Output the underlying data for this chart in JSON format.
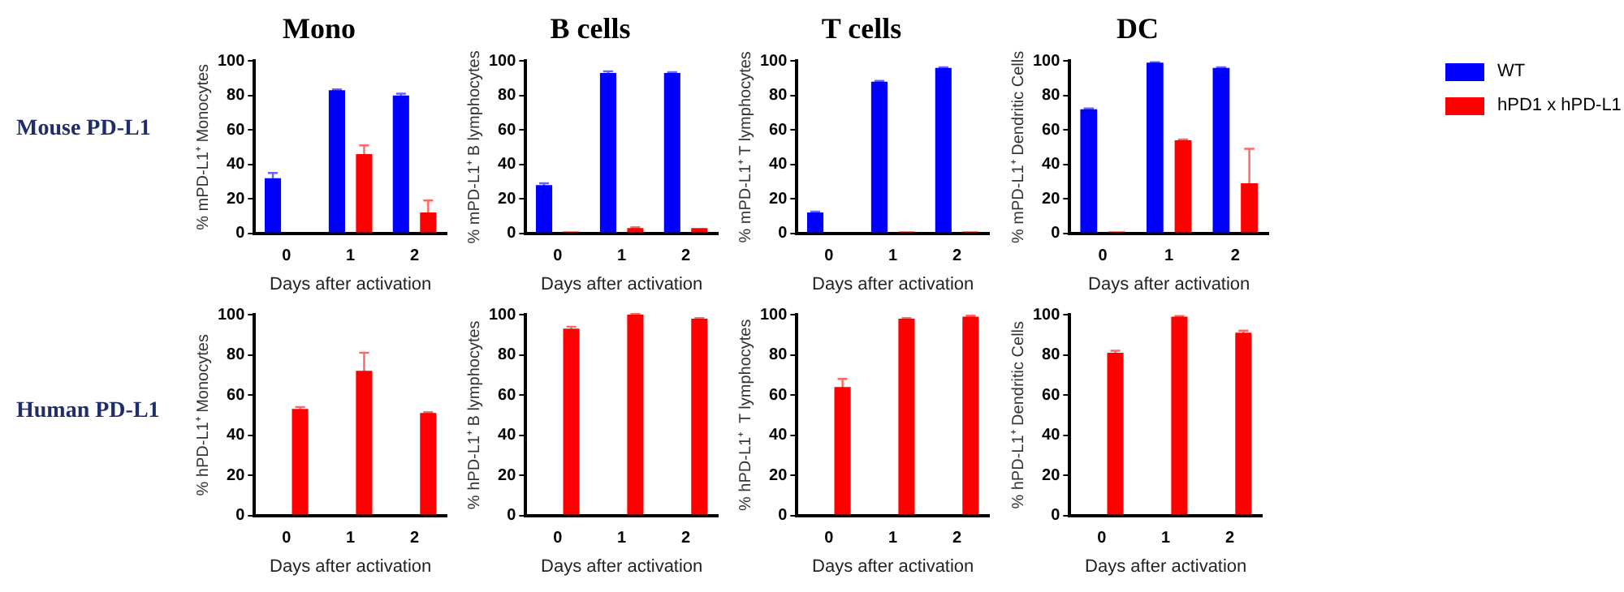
{
  "chart_data": [
    {
      "type": "bar",
      "title": "Mono",
      "xlabel": "Days after activation",
      "ylabel": "% mPD-L1⁺ Monocytes",
      "categories": [
        "0",
        "1",
        "2"
      ],
      "ylim": [
        0,
        100
      ],
      "yticks": [
        0,
        20,
        40,
        60,
        80,
        100
      ],
      "grid": false,
      "legend": false,
      "annotations": [
        "Mouse PD-L1"
      ],
      "series": [
        {
          "color": "#0000ff",
          "values": [
            32,
            83,
            80
          ],
          "errors": [
            3,
            0.5,
            1
          ]
        },
        {
          "color": "#ff0000",
          "values": [
            0,
            46,
            12
          ],
          "errors": [
            null,
            5,
            7
          ]
        }
      ]
    },
    {
      "type": "bar",
      "title": "B cells",
      "xlabel": "Days after activation",
      "ylabel": "% mPD-L1⁺ B lymphocytes",
      "categories": [
        "0",
        "1",
        "2"
      ],
      "ylim": [
        0,
        100
      ],
      "yticks": [
        0,
        20,
        40,
        60,
        80,
        100
      ],
      "grid": false,
      "legend": false,
      "series": [
        {
          "color": "#0000ff",
          "values": [
            28,
            93,
            93
          ],
          "errors": [
            1,
            1,
            0.5
          ]
        },
        {
          "color": "#ff0000",
          "values": [
            1,
            3,
            3
          ],
          "errors": [
            null,
            0.5,
            null
          ]
        }
      ]
    },
    {
      "type": "bar",
      "title": "T cells",
      "xlabel": "Days after activation",
      "ylabel": "% mPD-L1⁺ T lymphocytes",
      "categories": [
        "0",
        "1",
        "2"
      ],
      "ylim": [
        0,
        100
      ],
      "yticks": [
        0,
        20,
        40,
        60,
        80,
        100
      ],
      "grid": false,
      "legend": false,
      "series": [
        {
          "color": "#0000ff",
          "values": [
            12,
            88,
            96
          ],
          "errors": [
            0.5,
            0.5,
            0.3
          ]
        },
        {
          "color": "#ff0000",
          "values": [
            0,
            1,
            1
          ],
          "errors": [
            null,
            null,
            null
          ]
        }
      ]
    },
    {
      "type": "bar",
      "title": "DC",
      "xlabel": "Days after activation",
      "ylabel": "% mPD-L1⁺ Dendritic Cells",
      "categories": [
        "0",
        "1",
        "2"
      ],
      "ylim": [
        0,
        100
      ],
      "yticks": [
        0,
        20,
        40,
        60,
        80,
        100
      ],
      "grid": false,
      "legend": "top right",
      "series": [
        {
          "name": "WT",
          "color": "#0000ff",
          "values": [
            72,
            99,
            96
          ],
          "errors": [
            0.5,
            0.3,
            0.3
          ]
        },
        {
          "name": "hPD1 x hPD-L1",
          "color": "#ff0000",
          "values": [
            1,
            54,
            29
          ],
          "errors": [
            null,
            0.5,
            20
          ]
        }
      ]
    },
    {
      "type": "bar",
      "xlabel": "Days after activation",
      "ylabel": "% hPD-L1⁺ Monocytes",
      "categories": [
        "0",
        "1",
        "2"
      ],
      "ylim": [
        0,
        100
      ],
      "yticks": [
        0,
        20,
        40,
        60,
        80,
        100
      ],
      "grid": false,
      "legend": false,
      "annotations": [
        "Human PD-L1"
      ],
      "series": [
        {
          "color": "#0000ff",
          "values": [
            null,
            null,
            null
          ]
        },
        {
          "color": "#ff0000",
          "values": [
            53,
            72,
            51
          ],
          "errors": [
            1,
            9,
            0.5
          ]
        }
      ]
    },
    {
      "type": "bar",
      "xlabel": "Days after activation",
      "ylabel": "% hPD-L1⁺ B lymphocytes",
      "categories": [
        "0",
        "1",
        "2"
      ],
      "ylim": [
        0,
        100
      ],
      "yticks": [
        0,
        20,
        40,
        60,
        80,
        100
      ],
      "grid": false,
      "legend": false,
      "series": [
        {
          "color": "#0000ff",
          "values": [
            null,
            null,
            null
          ]
        },
        {
          "color": "#ff0000",
          "values": [
            93,
            100,
            98
          ],
          "errors": [
            1,
            0.3,
            0.3
          ]
        }
      ]
    },
    {
      "type": "bar",
      "xlabel": "Days after activation",
      "ylabel": "% hPD-L1⁺  T lymphocytes",
      "categories": [
        "0",
        "1",
        "2"
      ],
      "ylim": [
        0,
        100
      ],
      "yticks": [
        0,
        20,
        40,
        60,
        80,
        100
      ],
      "grid": false,
      "legend": false,
      "series": [
        {
          "color": "#0000ff",
          "values": [
            null,
            null,
            null
          ]
        },
        {
          "color": "#ff0000",
          "values": [
            64,
            98,
            99
          ],
          "errors": [
            4,
            0.3,
            0.5
          ]
        }
      ]
    },
    {
      "type": "bar",
      "xlabel": "Days after activation",
      "ylabel": "% hPD-L1⁺ Dendritic Cells",
      "categories": [
        "0",
        "1",
        "2"
      ],
      "ylim": [
        0,
        100
      ],
      "yticks": [
        0,
        20,
        40,
        60,
        80,
        100
      ],
      "grid": false,
      "legend": false,
      "series": [
        {
          "color": "#0000ff",
          "values": [
            null,
            null,
            null
          ]
        },
        {
          "color": "#ff0000",
          "values": [
            81,
            99,
            91
          ],
          "errors": [
            1,
            0.3,
            1
          ]
        }
      ]
    }
  ]
}
